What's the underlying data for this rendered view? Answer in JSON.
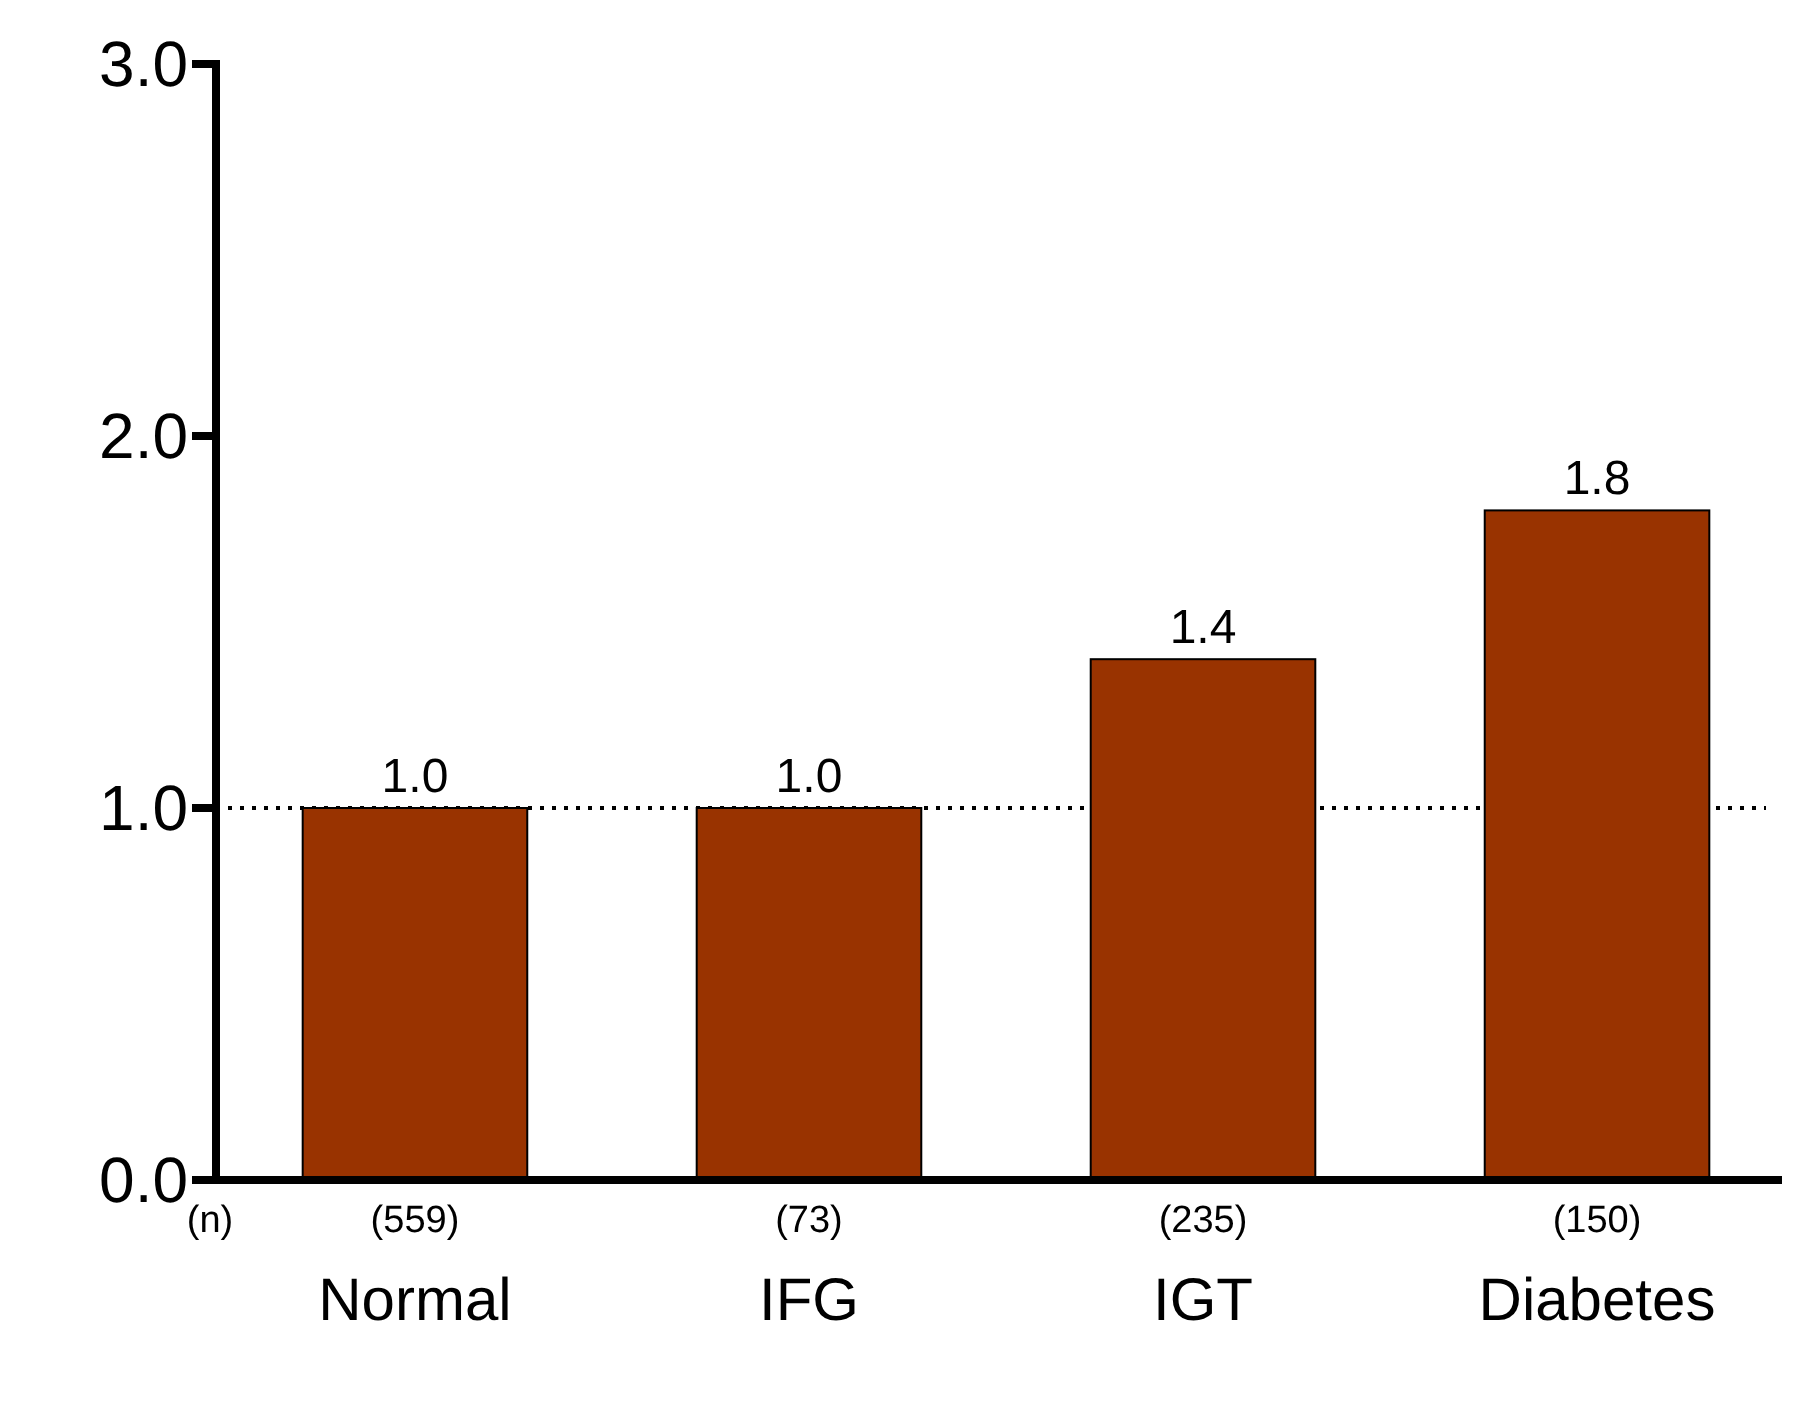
{
  "chart_data": {
    "type": "bar",
    "categories": [
      "Normal",
      "IFG",
      "IGT",
      "Diabetes"
    ],
    "values": [
      1.0,
      1.0,
      1.4,
      1.8
    ],
    "value_labels": [
      "1.0",
      "1.0",
      "1.4",
      "1.8"
    ],
    "color": "#993300",
    "ylim": [
      0,
      3
    ],
    "yticks": [
      {
        "value": 0,
        "label": "0.0"
      },
      {
        "value": 1,
        "label": "1.0"
      },
      {
        "value": 2,
        "label": "2.0"
      },
      {
        "value": 3,
        "label": "3.0"
      }
    ],
    "ref_lines": [
      {
        "axis": "y",
        "value": 1,
        "color": "#000000",
        "line_style": "dotted"
      }
    ],
    "annotations": [
      "(n)",
      "(559)",
      "(73)",
      "(235)",
      "(150)"
    ]
  }
}
